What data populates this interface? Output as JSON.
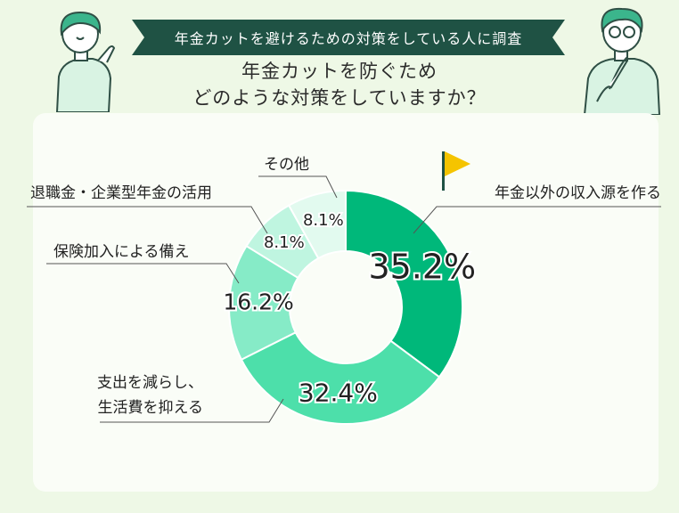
{
  "header": {
    "banner": "年金カットを避けるための対策をしている人に調査",
    "title_line1": "年金カットを防ぐため",
    "title_line2": "どのような対策をしていますか？"
  },
  "colors": {
    "background": "#eef8e6",
    "banner": "#1f5244",
    "slices": [
      "#00b87a",
      "#4ddfaa",
      "#86ebc7",
      "#bff5e0",
      "#e2faef"
    ],
    "flag": "#f5c400"
  },
  "chart_data": {
    "type": "pie",
    "donut": true,
    "categories": [
      "年金以外の収入源を作る",
      "支出を減らし、生活費を抑える",
      "保険加入による備え",
      "退職金・企業型年金の活用",
      "その他"
    ],
    "label_lines": [
      [
        "年金以外の収入源を作る"
      ],
      [
        "支出を減らし、",
        "生活費を抑える"
      ],
      [
        "保険加入による備え"
      ],
      [
        "退職金・企業型年金の活用"
      ],
      [
        "その他"
      ]
    ],
    "values": [
      35.2,
      32.4,
      16.2,
      8.1,
      8.1
    ],
    "value_labels": [
      "35.2%",
      "32.4%",
      "16.2%",
      "8.1%",
      "8.1%"
    ]
  }
}
